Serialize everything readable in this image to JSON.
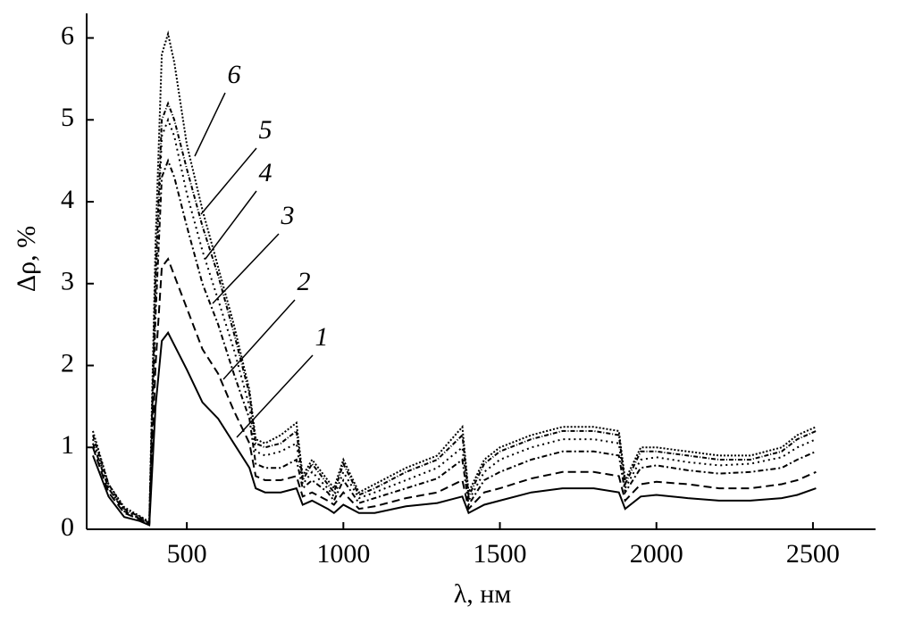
{
  "chart_data": {
    "type": "line",
    "xlabel": "λ, нм",
    "ylabel": "Δρ, %",
    "x": [
      200,
      250,
      300,
      350,
      380,
      400,
      420,
      440,
      460,
      500,
      550,
      600,
      650,
      700,
      720,
      750,
      800,
      850,
      870,
      900,
      950,
      970,
      1000,
      1050,
      1100,
      1200,
      1300,
      1380,
      1400,
      1450,
      1500,
      1600,
      1700,
      1800,
      1880,
      1900,
      1950,
      2000,
      2100,
      2200,
      2300,
      2400,
      2450,
      2510
    ],
    "series": [
      {
        "name": "1",
        "color": "#000000",
        "dash": "none",
        "values": [
          0.9,
          0.4,
          0.15,
          0.1,
          0.05,
          1.5,
          2.3,
          2.4,
          2.25,
          1.95,
          1.55,
          1.35,
          1.05,
          0.75,
          0.5,
          0.45,
          0.45,
          0.5,
          0.3,
          0.35,
          0.25,
          0.2,
          0.3,
          0.2,
          0.2,
          0.28,
          0.32,
          0.4,
          0.2,
          0.3,
          0.35,
          0.45,
          0.5,
          0.5,
          0.45,
          0.25,
          0.4,
          0.42,
          0.38,
          0.35,
          0.35,
          0.38,
          0.42,
          0.5
        ]
      },
      {
        "name": "2",
        "color": "#000000",
        "dash": "9 5",
        "values": [
          1.0,
          0.45,
          0.2,
          0.12,
          0.06,
          2.0,
          3.2,
          3.3,
          3.1,
          2.7,
          2.2,
          1.9,
          1.45,
          1.05,
          0.65,
          0.6,
          0.6,
          0.65,
          0.4,
          0.45,
          0.35,
          0.3,
          0.45,
          0.25,
          0.28,
          0.38,
          0.45,
          0.6,
          0.25,
          0.45,
          0.5,
          0.62,
          0.7,
          0.7,
          0.65,
          0.35,
          0.55,
          0.58,
          0.55,
          0.5,
          0.5,
          0.55,
          0.6,
          0.7
        ]
      },
      {
        "name": "3",
        "color": "#000000",
        "dash": "6 3 2 3",
        "values": [
          1.05,
          0.5,
          0.22,
          0.13,
          0.07,
          2.6,
          4.3,
          4.5,
          4.3,
          3.7,
          3.0,
          2.5,
          1.9,
          1.35,
          0.8,
          0.75,
          0.75,
          0.85,
          0.5,
          0.6,
          0.45,
          0.35,
          0.6,
          0.32,
          0.38,
          0.5,
          0.62,
          0.85,
          0.3,
          0.6,
          0.7,
          0.85,
          0.95,
          0.95,
          0.9,
          0.45,
          0.75,
          0.78,
          0.72,
          0.68,
          0.7,
          0.75,
          0.85,
          0.95
        ]
      },
      {
        "name": "4",
        "color": "#000000",
        "dash": "2 4",
        "values": [
          1.1,
          0.5,
          0.24,
          0.14,
          0.08,
          2.9,
          4.8,
          5.0,
          4.8,
          4.1,
          3.4,
          2.8,
          2.2,
          1.5,
          0.95,
          0.9,
          0.95,
          1.05,
          0.55,
          0.7,
          0.5,
          0.4,
          0.7,
          0.38,
          0.45,
          0.6,
          0.75,
          1.0,
          0.35,
          0.7,
          0.85,
          1.0,
          1.1,
          1.1,
          1.05,
          0.5,
          0.85,
          0.88,
          0.82,
          0.78,
          0.8,
          0.88,
          1.0,
          1.1
        ]
      },
      {
        "name": "5",
        "color": "#000000",
        "dash": "5 2 1 2",
        "values": [
          1.15,
          0.55,
          0.25,
          0.15,
          0.08,
          3.1,
          5.0,
          5.2,
          5.0,
          4.4,
          3.7,
          3.1,
          2.4,
          1.65,
          1.05,
          1.0,
          1.05,
          1.2,
          0.6,
          0.8,
          0.55,
          0.45,
          0.8,
          0.42,
          0.5,
          0.7,
          0.85,
          1.15,
          0.4,
          0.8,
          0.95,
          1.1,
          1.2,
          1.2,
          1.15,
          0.55,
          0.95,
          0.95,
          0.9,
          0.85,
          0.85,
          0.95,
          1.1,
          1.2
        ]
      },
      {
        "name": "6",
        "color": "#000000",
        "dash": "2 2",
        "values": [
          1.2,
          0.55,
          0.27,
          0.16,
          0.09,
          3.5,
          5.8,
          6.05,
          5.7,
          4.7,
          3.9,
          3.2,
          2.5,
          1.7,
          1.1,
          1.05,
          1.15,
          1.3,
          0.65,
          0.85,
          0.6,
          0.5,
          0.85,
          0.45,
          0.55,
          0.75,
          0.9,
          1.25,
          0.45,
          0.85,
          1.0,
          1.15,
          1.25,
          1.25,
          1.2,
          0.6,
          1.0,
          1.0,
          0.95,
          0.9,
          0.9,
          1.0,
          1.15,
          1.25
        ]
      }
    ],
    "xlim": [
      180,
      2700
    ],
    "ylim": [
      0,
      6.3
    ],
    "xticks": [
      500,
      1000,
      1500,
      2000,
      2500
    ],
    "yticks": [
      0,
      1,
      2,
      3,
      4,
      5,
      6
    ]
  }
}
